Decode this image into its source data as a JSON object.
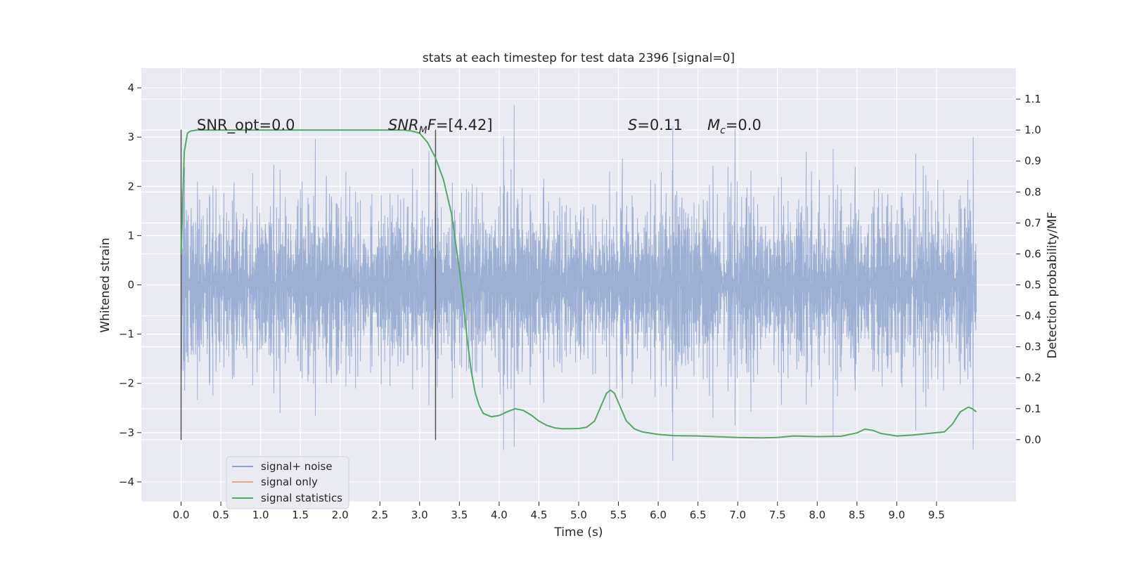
{
  "chart_data": {
    "type": "line",
    "title": "stats at each timestep for test data 2396 [signal=0]",
    "xlabel": "Time (s)",
    "ylabel": "Whitened strain",
    "ylabel_right": "Detection probability/MF",
    "xlim": [
      -0.5,
      10.5
    ],
    "ylim": [
      -4.4,
      4.4
    ],
    "ylim_right": [
      -0.2,
      1.2
    ],
    "x_ticks": [
      0.0,
      0.5,
      1.0,
      1.5,
      2.0,
      2.5,
      3.0,
      3.5,
      4.0,
      4.5,
      5.0,
      5.5,
      6.0,
      6.5,
      7.0,
      7.5,
      8.0,
      8.5,
      9.0,
      9.5
    ],
    "x_tick_labels": [
      "0.0",
      "0.5",
      "1.0",
      "1.5",
      "2.0",
      "2.5",
      "3.0",
      "3.5",
      "4.0",
      "4.5",
      "5.0",
      "5.5",
      "6.0",
      "6.5",
      "7.0",
      "7.5",
      "8.0",
      "8.5",
      "9.0",
      "9.5"
    ],
    "y_ticks": [
      -4,
      -3,
      -2,
      -1,
      0,
      1,
      2,
      3,
      4
    ],
    "y_tick_labels": [
      "−4",
      "−3",
      "−2",
      "−1",
      "0",
      "1",
      "2",
      "3",
      "4"
    ],
    "y_right_ticks": [
      0.0,
      0.1,
      0.2,
      0.3,
      0.4,
      0.5,
      0.6,
      0.7,
      0.8,
      0.9,
      1.0,
      1.1
    ],
    "y_right_tick_labels": [
      "0.0",
      "0.1",
      "0.2",
      "0.3",
      "0.4",
      "0.5",
      "0.6",
      "0.7",
      "0.8",
      "0.9",
      "1.0",
      "1.1"
    ],
    "grid": true,
    "legend_position": "lower-left",
    "series": [
      {
        "name": "signal+ noise",
        "axis": "left",
        "color": "#8fa5cf",
        "x_range": [
          0.0,
          10.0
        ],
        "typical_amplitude": 1.9,
        "peak_range": [
          -4.05,
          4.05
        ],
        "note_render": "dense noise trace"
      },
      {
        "name": "signal only",
        "axis": "left",
        "color": "#e8a58a",
        "x": [],
        "y": []
      },
      {
        "name": "signal statistics",
        "axis": "right",
        "color": "#55a868",
        "x": [
          0.0,
          0.04,
          0.08,
          0.12,
          0.2,
          0.4,
          1.0,
          2.0,
          2.6,
          2.8,
          2.9,
          3.0,
          3.1,
          3.2,
          3.3,
          3.4,
          3.5,
          3.55,
          3.6,
          3.65,
          3.7,
          3.75,
          3.8,
          3.9,
          4.0,
          4.1,
          4.2,
          4.3,
          4.4,
          4.5,
          4.6,
          4.7,
          4.8,
          5.0,
          5.1,
          5.2,
          5.3,
          5.35,
          5.4,
          5.45,
          5.5,
          5.6,
          5.7,
          5.8,
          6.0,
          6.2,
          6.5,
          7.0,
          7.3,
          7.5,
          7.7,
          8.0,
          8.3,
          8.5,
          8.6,
          8.7,
          8.8,
          9.0,
          9.2,
          9.4,
          9.6,
          9.7,
          9.8,
          9.9,
          9.95,
          10.0
        ],
        "y": [
          0.6,
          0.93,
          0.99,
          0.997,
          1.0,
          1.0,
          1.0,
          1.0,
          1.0,
          1.0,
          0.997,
          0.99,
          0.96,
          0.91,
          0.84,
          0.73,
          0.55,
          0.44,
          0.32,
          0.22,
          0.15,
          0.11,
          0.085,
          0.074,
          0.078,
          0.09,
          0.1,
          0.095,
          0.08,
          0.06,
          0.046,
          0.038,
          0.035,
          0.036,
          0.04,
          0.06,
          0.12,
          0.15,
          0.16,
          0.15,
          0.12,
          0.06,
          0.035,
          0.025,
          0.017,
          0.013,
          0.012,
          0.007,
          0.006,
          0.007,
          0.012,
          0.01,
          0.011,
          0.022,
          0.034,
          0.03,
          0.02,
          0.012,
          0.015,
          0.02,
          0.025,
          0.05,
          0.09,
          0.105,
          0.1,
          0.09
        ]
      }
    ],
    "vlines": [
      0.0,
      3.2
    ],
    "annotations": [
      {
        "label": "SNR_opt=0.0",
        "x": 0.2,
        "y": 3.15
      },
      {
        "label": "SNR_MF=[4.42]",
        "x": 2.6,
        "y": 3.15
      },
      {
        "label": "S=0.11",
        "x": 5.6,
        "y": 3.15
      },
      {
        "label": "M_c=0.0",
        "x": 6.6,
        "y": 3.15
      }
    ]
  }
}
